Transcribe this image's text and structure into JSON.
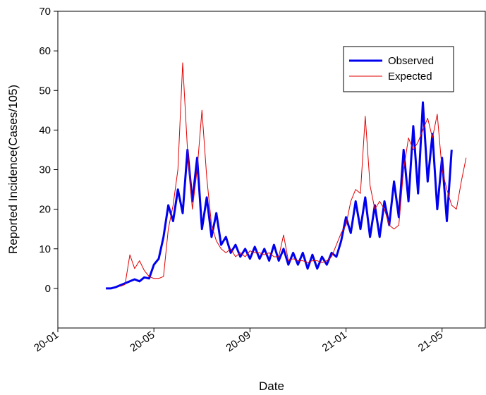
{
  "chart_data": {
    "type": "line",
    "x_label": "Date",
    "y_label": "Reported Incidence(Cases/105)",
    "x": [
      2.0,
      2.2,
      2.4,
      2.6,
      2.8,
      3.0,
      3.2,
      3.4,
      3.6,
      3.8,
      4.0,
      4.2,
      4.4,
      4.6,
      4.8,
      5.0,
      5.2,
      5.4,
      5.6,
      5.8,
      6.0,
      6.2,
      6.4,
      6.6,
      6.8,
      7.0,
      7.2,
      7.4,
      7.6,
      7.8,
      8.0,
      8.2,
      8.4,
      8.6,
      8.8,
      9.0,
      9.2,
      9.4,
      9.6,
      9.8,
      10.0,
      10.2,
      10.4,
      10.6,
      10.8,
      11.0,
      11.2,
      11.4,
      11.6,
      11.8,
      12.0,
      12.2,
      12.4,
      12.6,
      12.8,
      13.0,
      13.2,
      13.4,
      13.6,
      13.8,
      14.0,
      14.2,
      14.4,
      14.6,
      14.8,
      15.0,
      15.2,
      15.4,
      15.6,
      15.8,
      16.0,
      16.2,
      16.4,
      16.6,
      16.8,
      17.0
    ],
    "series": [
      {
        "name": "Observed",
        "color": "#0000ee",
        "width": 3,
        "values": [
          0,
          0,
          0.3,
          0.8,
          1.3,
          1.8,
          2.3,
          1.8,
          2.8,
          2.5,
          6,
          7.5,
          13,
          21,
          17,
          25,
          19,
          35,
          22,
          33,
          15,
          23,
          13,
          19,
          11,
          13,
          9,
          11,
          8,
          10,
          7.5,
          10.5,
          7.5,
          10,
          7,
          11,
          7,
          10,
          6,
          9,
          6,
          9,
          5,
          8.5,
          5,
          8,
          6,
          9,
          8,
          12,
          18,
          14,
          22,
          15,
          23,
          13,
          21,
          13,
          22,
          16,
          27,
          18,
          35,
          22,
          41,
          24,
          47,
          27,
          39,
          20,
          33,
          17,
          35,
          null,
          null,
          null
        ]
      },
      {
        "name": "Expected",
        "color": "#e00000",
        "width": 1,
        "values": [
          null,
          null,
          null,
          0.5,
          1,
          8.5,
          5,
          7,
          4.5,
          3,
          2.5,
          2.5,
          3,
          15,
          21,
          30,
          57,
          35,
          20,
          30,
          45,
          28,
          16,
          12,
          10,
          9,
          10,
          8,
          9,
          8,
          9.5,
          9,
          9,
          8.5,
          9,
          8,
          8,
          13.5,
          7,
          7.5,
          7,
          7,
          6.5,
          7,
          7,
          6.5,
          7,
          8,
          11,
          14,
          16,
          22,
          25,
          24,
          43.5,
          26,
          20,
          22,
          20,
          16,
          15,
          16,
          30,
          38,
          35,
          37,
          40,
          43,
          38,
          44,
          30,
          25,
          21,
          20,
          27,
          33
        ]
      }
    ],
    "xlim": [
      0,
      17.8
    ],
    "xticks": [
      {
        "value": 0,
        "label": "20-01"
      },
      {
        "value": 4,
        "label": "20-05"
      },
      {
        "value": 8,
        "label": "20-09"
      },
      {
        "value": 12,
        "label": "21-01"
      },
      {
        "value": 16,
        "label": "21-05"
      }
    ],
    "ylim": [
      -10,
      70
    ],
    "yticks": [
      0,
      10,
      20,
      30,
      40,
      50,
      60,
      70
    ],
    "legend": "upper right"
  }
}
